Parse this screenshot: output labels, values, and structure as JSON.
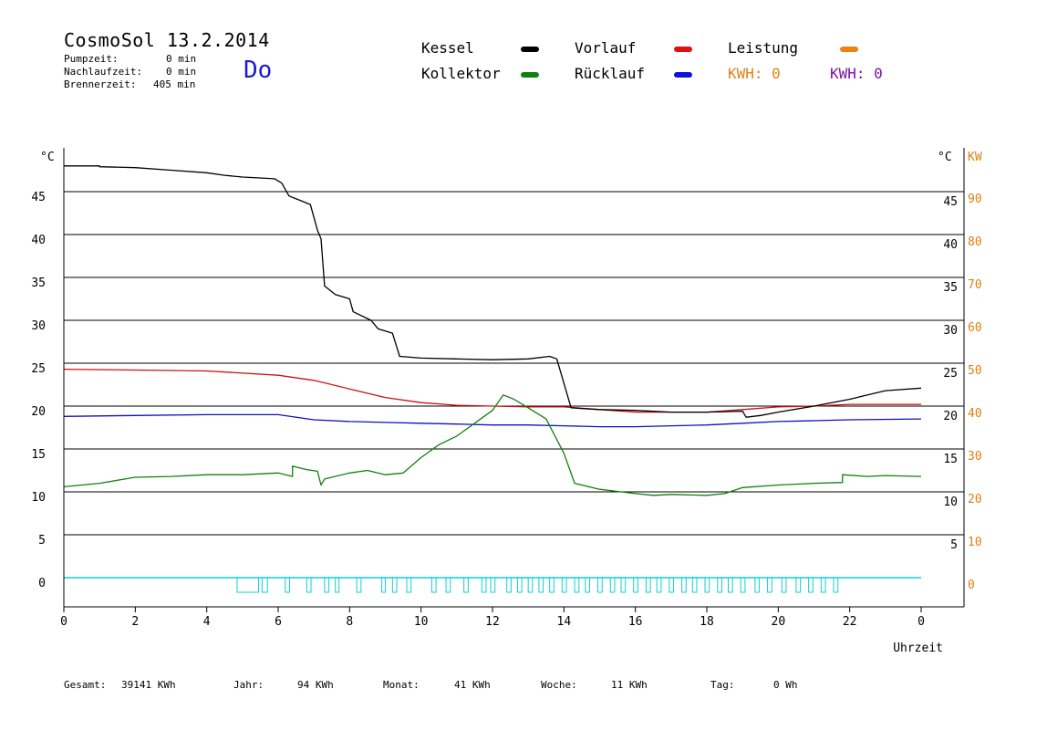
{
  "header": {
    "title": "CosmoSol 13.2.2014",
    "day": "Do",
    "stats": [
      {
        "label": "Pumpzeit:",
        "value": "0 min"
      },
      {
        "label": "Nachlaufzeit:",
        "value": "0 min"
      },
      {
        "label": "Brennerzeit:",
        "value": "405 min"
      }
    ]
  },
  "legend": {
    "kessel": {
      "label": "Kessel",
      "color": "#000000"
    },
    "kollektor": {
      "label": "Kollektor",
      "color": "#108010"
    },
    "vorlauf": {
      "label": "Vorlauf",
      "color": "#e01010"
    },
    "ruecklauf": {
      "label": "Rücklauf",
      "color": "#1010e0"
    },
    "leistung": {
      "label": "Leistung",
      "color": "#f08010"
    },
    "kwh1": {
      "text": "KWH: 0",
      "color": "#e08010"
    },
    "kwh2": {
      "text": "KWH: 0",
      "color": "#8010a0"
    }
  },
  "footer": {
    "gesamt_label": "Gesamt:",
    "gesamt_value": "39141 KWh",
    "jahr_label": "Jahr:",
    "jahr_value": "94 KWh",
    "monat_label": "Monat:",
    "monat_value": "41 KWh",
    "woche_label": "Woche:",
    "woche_value": "11 KWh",
    "tag_label": "Tag:",
    "tag_value": "0 Wh"
  },
  "chart_data": {
    "type": "line",
    "xlabel": "Uhrzeit",
    "ylabel_left": "°C",
    "ylabel_right_1": "°C",
    "ylabel_right_2": "KW",
    "x_ticks": [
      "0",
      "2",
      "4",
      "6",
      "8",
      "10",
      "12",
      "14",
      "16",
      "18",
      "20",
      "22",
      "0"
    ],
    "y_ticks_left": [
      "0",
      "5",
      "10",
      "15",
      "20",
      "25",
      "30",
      "35",
      "40",
      "45"
    ],
    "y_ticks_right": [
      "5",
      "10",
      "15",
      "20",
      "25",
      "30",
      "35",
      "40",
      "45"
    ],
    "y_ticks_kw": [
      "0",
      "10",
      "20",
      "30",
      "40",
      "50",
      "60",
      "70",
      "80",
      "90"
    ],
    "xlim": [
      0,
      24
    ],
    "ylim": [
      -3.5,
      49
    ],
    "grid": true,
    "colors": {
      "kessel": "#000000",
      "vorlauf": "#d01010",
      "ruecklauf": "#1010c0",
      "kollektor": "#108010",
      "pump": "#10d0d0"
    },
    "series": [
      {
        "name": "Kessel",
        "points": [
          [
            0,
            48
          ],
          [
            1,
            48
          ],
          [
            1,
            47.9
          ],
          [
            2,
            47.8
          ],
          [
            3,
            47.5
          ],
          [
            4,
            47.2
          ],
          [
            4.5,
            46.9
          ],
          [
            5,
            46.7
          ],
          [
            5.9,
            46.5
          ],
          [
            6.1,
            46
          ],
          [
            6.3,
            44.5
          ],
          [
            6.6,
            44
          ],
          [
            6.9,
            43.5
          ],
          [
            7,
            42
          ],
          [
            7.1,
            40.5
          ],
          [
            7.2,
            39.5
          ],
          [
            7.3,
            34
          ],
          [
            7.6,
            33
          ],
          [
            8,
            32.5
          ],
          [
            8.1,
            31
          ],
          [
            8.6,
            30
          ],
          [
            8.8,
            29
          ],
          [
            9.2,
            28.5
          ],
          [
            9.4,
            25.8
          ],
          [
            10,
            25.6
          ],
          [
            11,
            25.5
          ],
          [
            12,
            25.4
          ],
          [
            13,
            25.5
          ],
          [
            13.6,
            25.8
          ],
          [
            13.8,
            25.5
          ],
          [
            14.2,
            19.8
          ],
          [
            15,
            19.6
          ],
          [
            16,
            19.5
          ],
          [
            17,
            19.3
          ],
          [
            18,
            19.3
          ],
          [
            19,
            19.4
          ],
          [
            19.1,
            18.7
          ],
          [
            19.5,
            18.9
          ],
          [
            20,
            19.3
          ],
          [
            21,
            20
          ],
          [
            22,
            20.8
          ],
          [
            22.5,
            21.3
          ],
          [
            23,
            21.8
          ],
          [
            24,
            22.1
          ]
        ]
      },
      {
        "name": "Vorlauf",
        "points": [
          [
            0,
            24.3
          ],
          [
            2,
            24.2
          ],
          [
            4,
            24.1
          ],
          [
            6,
            23.6
          ],
          [
            7,
            23
          ],
          [
            8,
            22
          ],
          [
            9,
            21
          ],
          [
            10,
            20.4
          ],
          [
            11,
            20.1
          ],
          [
            12,
            20
          ],
          [
            13,
            19.9
          ],
          [
            14,
            19.9
          ],
          [
            15,
            19.6
          ],
          [
            16,
            19.3
          ],
          [
            17,
            19.3
          ],
          [
            18,
            19.3
          ],
          [
            19,
            19.6
          ],
          [
            20,
            19.9
          ],
          [
            21,
            20
          ],
          [
            22,
            20.2
          ],
          [
            24,
            20.2
          ]
        ]
      },
      {
        "name": "Rücklauf",
        "points": [
          [
            0,
            18.8
          ],
          [
            2,
            18.9
          ],
          [
            4,
            19
          ],
          [
            6,
            19
          ],
          [
            7,
            18.4
          ],
          [
            8,
            18.2
          ],
          [
            9,
            18.1
          ],
          [
            10,
            18
          ],
          [
            11,
            17.9
          ],
          [
            12,
            17.8
          ],
          [
            13,
            17.8
          ],
          [
            14,
            17.7
          ],
          [
            15,
            17.6
          ],
          [
            16,
            17.6
          ],
          [
            17,
            17.7
          ],
          [
            18,
            17.8
          ],
          [
            19,
            18
          ],
          [
            20,
            18.2
          ],
          [
            21,
            18.3
          ],
          [
            22,
            18.4
          ],
          [
            24,
            18.5
          ]
        ]
      },
      {
        "name": "Kollektor",
        "points": [
          [
            0,
            10.6
          ],
          [
            1,
            11
          ],
          [
            2,
            11.7
          ],
          [
            3,
            11.8
          ],
          [
            4,
            12
          ],
          [
            5,
            12
          ],
          [
            6,
            12.2
          ],
          [
            6.4,
            11.8
          ],
          [
            6.4,
            13
          ],
          [
            6.8,
            12.6
          ],
          [
            7.1,
            12.4
          ],
          [
            7.2,
            10.8
          ],
          [
            7.3,
            11.5
          ],
          [
            8,
            12.2
          ],
          [
            8.5,
            12.5
          ],
          [
            9,
            12
          ],
          [
            9.5,
            12.2
          ],
          [
            10,
            14
          ],
          [
            10.5,
            15.5
          ],
          [
            11,
            16.5
          ],
          [
            11.5,
            18
          ],
          [
            12,
            19.5
          ],
          [
            12.3,
            21.3
          ],
          [
            12.6,
            20.8
          ],
          [
            13,
            19.8
          ],
          [
            13.5,
            18.5
          ],
          [
            14,
            14.5
          ],
          [
            14.3,
            11
          ],
          [
            15,
            10.3
          ],
          [
            16,
            9.8
          ],
          [
            16.5,
            9.6
          ],
          [
            17,
            9.7
          ],
          [
            18,
            9.6
          ],
          [
            18.5,
            9.8
          ],
          [
            19,
            10.5
          ],
          [
            20,
            10.8
          ],
          [
            21,
            11
          ],
          [
            21.8,
            11.1
          ],
          [
            21.8,
            12
          ],
          [
            22.5,
            11.8
          ],
          [
            23,
            11.9
          ],
          [
            24,
            11.8
          ]
        ]
      }
    ]
  }
}
